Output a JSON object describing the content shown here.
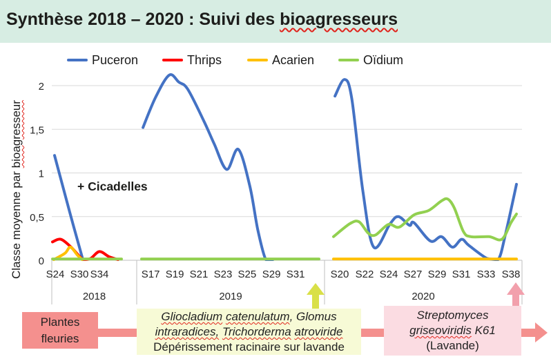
{
  "header": {
    "title_prefix": "Synthèse 2018 – 2020 : Suivi des ",
    "title_misspelled_word": "bioagresseurs"
  },
  "legend": {
    "items": [
      {
        "label": "Puceron",
        "color": "#4472C4"
      },
      {
        "label": "Thrips",
        "color": "#FF0000"
      },
      {
        "label": "Acarien",
        "color": "#FFC000"
      },
      {
        "label": "Oïdium",
        "color": "#92D050"
      }
    ]
  },
  "y_axis": {
    "label_prefix": "Classe moyenne par ",
    "label_misspelled_word": "bioagresseur"
  },
  "chart_data": {
    "type": "line",
    "title": "Synthèse 2018 – 2020 : Suivi des bioagresseurs",
    "ylabel": "Classe moyenne par bioagresseur",
    "ylim": [
      0,
      2.17
    ],
    "grid": true,
    "legend_position": "top",
    "y_ticks": [
      {
        "v": 0,
        "label": "0"
      },
      {
        "v": 0.5,
        "label": "0,5"
      },
      {
        "v": 1,
        "label": "1"
      },
      {
        "v": 1.5,
        "label": "1,5"
      },
      {
        "v": 2,
        "label": "2"
      }
    ],
    "series_colors": {
      "Puceron": "#4472C4",
      "Thrips": "#FF0000",
      "Acarien": "#FFC000",
      "Oïdium": "#92D050"
    },
    "panels": [
      {
        "year": "2018",
        "annotation": "+ Cicadelles",
        "ticks": [
          {
            "label": "S24",
            "u": 0.04
          },
          {
            "label": "S30",
            "u": 0.39
          },
          {
            "label": "S34",
            "u": 0.68
          }
        ],
        "series": [
          {
            "name": "Puceron",
            "points": [
              [
                0.03,
                1.2
              ],
              [
                0.25,
                0.55
              ],
              [
                0.44,
                0.0
              ]
            ]
          },
          {
            "name": "Thrips",
            "points": [
              [
                0.0,
                0.21
              ],
              [
                0.12,
                0.24
              ],
              [
                0.27,
                0.15
              ],
              [
                0.44,
                0.01
              ],
              [
                0.55,
                0.02
              ],
              [
                0.68,
                0.1
              ],
              [
                0.82,
                0.04
              ],
              [
                0.95,
                0.0
              ]
            ]
          },
          {
            "name": "Acarien",
            "points": [
              [
                0.02,
                0.0
              ],
              [
                0.18,
                0.08
              ],
              [
                0.26,
                0.15
              ],
              [
                0.36,
                0.06
              ],
              [
                0.43,
                0.0
              ]
            ]
          },
          {
            "name": "Oïdium",
            "points": [
              [
                0.0,
                0.015
              ],
              [
                1.0,
                0.015
              ]
            ]
          }
        ]
      },
      {
        "year": "2019",
        "ticks": [
          {
            "label": "S17",
            "u": 0.051
          },
          {
            "label": "S19",
            "u": 0.187
          },
          {
            "label": "S21",
            "u": 0.323
          },
          {
            "label": "S23",
            "u": 0.459
          },
          {
            "label": "S25",
            "u": 0.595
          },
          {
            "label": "S29",
            "u": 0.732
          },
          {
            "label": "S31",
            "u": 0.868
          }
        ],
        "series": [
          {
            "name": "Puceron",
            "points": [
              [
                0.008,
                1.52
              ],
              [
                0.08,
                1.87
              ],
              [
                0.156,
                2.12
              ],
              [
                0.21,
                2.04
              ],
              [
                0.26,
                1.96
              ],
              [
                0.35,
                1.6
              ],
              [
                0.41,
                1.33
              ],
              [
                0.48,
                1.04
              ],
              [
                0.545,
                1.27
              ],
              [
                0.61,
                0.85
              ],
              [
                0.655,
                0.35
              ],
              [
                0.7,
                0.0
              ],
              [
                0.74,
                0.0
              ]
            ]
          },
          {
            "name": "Oïdium",
            "points": [
              [
                0.0,
                0.015
              ],
              [
                1.0,
                0.015
              ]
            ]
          }
        ]
      },
      {
        "year": "2020",
        "ticks": [
          {
            "label": "S20",
            "u": 0.034
          },
          {
            "label": "S22",
            "u": 0.17
          },
          {
            "label": "S24",
            "u": 0.302
          },
          {
            "label": "S27",
            "u": 0.434
          },
          {
            "label": "S29",
            "u": 0.566
          },
          {
            "label": "S31",
            "u": 0.698
          },
          {
            "label": "S33",
            "u": 0.834
          },
          {
            "label": "S38",
            "u": 0.97
          }
        ],
        "series": [
          {
            "name": "Puceron",
            "points": [
              [
                0.008,
                1.88
              ],
              [
                0.06,
                2.07
              ],
              [
                0.1,
                1.85
              ],
              [
                0.16,
                0.8
              ],
              [
                0.22,
                0.15
              ],
              [
                0.31,
                0.42
              ],
              [
                0.355,
                0.5
              ],
              [
                0.415,
                0.4
              ],
              [
                0.44,
                0.43
              ],
              [
                0.53,
                0.22
              ],
              [
                0.59,
                0.27
              ],
              [
                0.65,
                0.15
              ],
              [
                0.7,
                0.24
              ],
              [
                0.74,
                0.17
              ],
              [
                0.84,
                0.02
              ],
              [
                0.9,
                0.0
              ],
              [
                0.94,
                0.3
              ],
              [
                1.0,
                0.87
              ]
            ]
          },
          {
            "name": "Oïdium",
            "points": [
              [
                0.0,
                0.27
              ],
              [
                0.09,
                0.42
              ],
              [
                0.14,
                0.44
              ],
              [
                0.19,
                0.31
              ],
              [
                0.23,
                0.29
              ],
              [
                0.3,
                0.41
              ],
              [
                0.36,
                0.38
              ],
              [
                0.44,
                0.52
              ],
              [
                0.52,
                0.57
              ],
              [
                0.59,
                0.68
              ],
              [
                0.625,
                0.7
              ],
              [
                0.66,
                0.6
              ],
              [
                0.71,
                0.33
              ],
              [
                0.75,
                0.27
              ],
              [
                0.85,
                0.27
              ],
              [
                0.92,
                0.24
              ],
              [
                0.97,
                0.43
              ],
              [
                1.0,
                0.53
              ]
            ]
          },
          {
            "name": "Acarien",
            "points": [
              [
                0.0,
                0.015
              ],
              [
                1.0,
                0.015
              ]
            ]
          }
        ]
      }
    ]
  },
  "timeline": {
    "plantes_box": {
      "text": "Plantes fleuries"
    },
    "gliocladium_box": {
      "lines": [
        {
          "italic": true,
          "segs": [
            {
              "t": "Gliocladium",
              "sq": true
            },
            {
              "t": " "
            },
            {
              "t": "catenulatum",
              "sq": true
            },
            {
              "t": ", Glomus"
            }
          ]
        },
        {
          "italic": true,
          "segs": [
            {
              "t": "intraradices,",
              "sq": true
            },
            {
              "t": " "
            },
            {
              "t": "Trichorderma",
              "sq": true
            },
            {
              "t": " "
            },
            {
              "t": "atroviride",
              "sq": true
            }
          ]
        },
        {
          "italic": false,
          "segs": [
            {
              "t": "Dépérissement racinaire sur lavande"
            }
          ]
        }
      ]
    },
    "strepto_box": {
      "lines": [
        {
          "italic": true,
          "segs": [
            {
              "t": "Streptomyces"
            }
          ]
        },
        {
          "italic": true,
          "segs": [
            {
              "t": "griseoviridis",
              "sq": true
            },
            {
              "t": " K61"
            }
          ]
        },
        {
          "italic": false,
          "segs": [
            {
              "t": "(Lavande)"
            }
          ]
        }
      ]
    }
  }
}
